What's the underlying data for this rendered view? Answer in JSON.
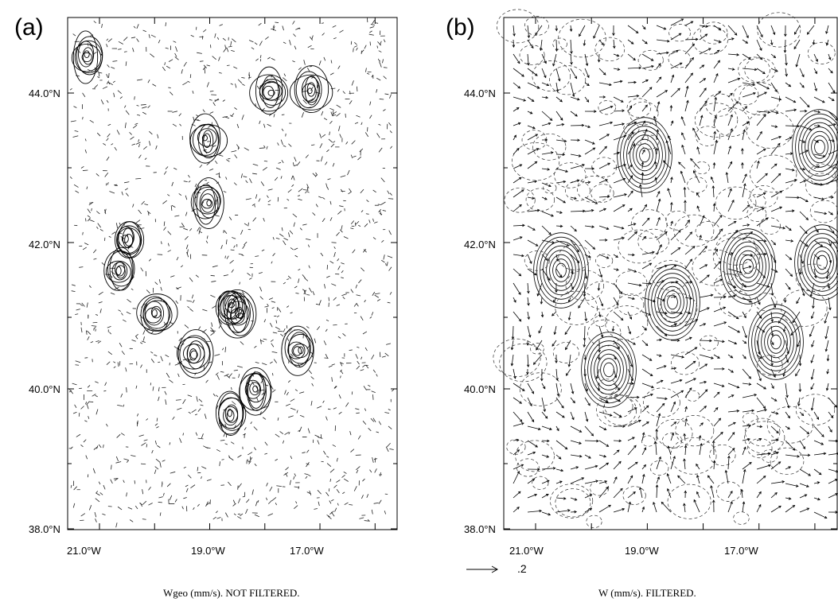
{
  "panels": [
    {
      "letter": "(a)",
      "caption": "Wgeo (mm/s). NOT FILTERED.",
      "y_ticks": [
        "44.0°N",
        "42.0°N",
        "40.0°N",
        "38.0°N"
      ],
      "x_ticks": [
        "21.0°W",
        "19.0°W",
        "17.0°W"
      ]
    },
    {
      "letter": "(b)",
      "caption": "W (mm/s). FILTERED.",
      "y_ticks": [
        "44.0°N",
        "42.0°N",
        "40.0°N",
        "38.0°N"
      ],
      "x_ticks": [
        "21.0°W",
        "19.0°W",
        "17.0°W"
      ],
      "reference_vector_label": ".2"
    }
  ]
}
